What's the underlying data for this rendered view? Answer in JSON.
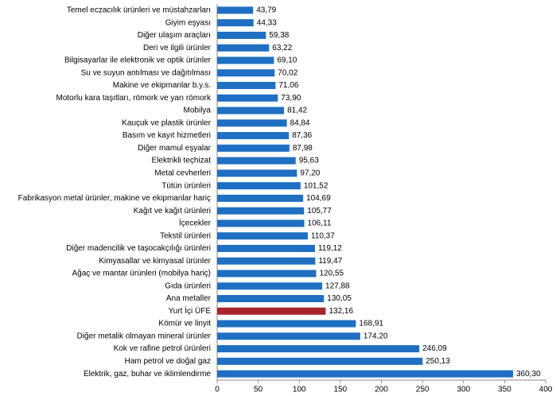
{
  "chart_data": {
    "type": "barh",
    "categories": [
      "Temel eczacılık ürünleri ve müstahzarları",
      "Giyim eşyası",
      "Diğer ulaşım araçları",
      "Deri ve ilgili ürünler",
      "Bilgisayarlar ile elektronik ve optik ürünler",
      "Su ve suyun antılması ve dağıtılması",
      "Makine ve ekipmanlar b.y.s.",
      "Motorlu kara taşıtları, römork ve yarı römork",
      "Mobilya",
      "Kauçuk ve plastik ürünler",
      "Basım ve kayıt hizmetleri",
      "Diğer mamul eşyalar",
      "Elektrikli teçhizat",
      "Metal cevherleri",
      "Tütün ürünleri",
      "Fabrikasyon metal ürünler, makine ve ekipmanlar hariç",
      "Kağıt ve kağıt ürünleri",
      "İçecekler",
      "Tekstil ürünleri",
      "Diğer madencilik ve taşocakçılığı ürünleri",
      "Kimyasallar ve kimyasal ürünler",
      "Ağaç ve mantar ürünleri (mobilya hariç)",
      "Gıda ürünleri",
      "Ana metaller",
      "Yurt İçi ÜFE",
      "Kömür ve linyit",
      "Diğer metalik olmayan mineral ürünler",
      "Kok ve rafine petrol ürünleri",
      "Ham petrol ve doğal gaz",
      "Elektrik, gaz, buhar ve iklimlendirme"
    ],
    "values": [
      43.79,
      44.33,
      59.38,
      63.22,
      69.1,
      70.02,
      71.06,
      73.9,
      81.42,
      84.84,
      87.36,
      87.98,
      95.63,
      97.2,
      101.52,
      104.69,
      105.77,
      106.11,
      110.37,
      119.12,
      119.47,
      120.55,
      127.88,
      130.05,
      132.16,
      168.91,
      174.2,
      246.09,
      250.13,
      360.3
    ],
    "value_labels": [
      "43,79",
      "44,33",
      "59,38",
      "63,22",
      "69,10",
      "70,02",
      "71,06",
      "73,90",
      "81,42",
      "84,84",
      "87,36",
      "87,98",
      "95,63",
      "97,20",
      "101,52",
      "104,69",
      "105,77",
      "106,11",
      "110,37",
      "119,12",
      "119,47",
      "120,55",
      "127,88",
      "130,05",
      "132,16",
      "168,91",
      "174,20",
      "246,09",
      "250,13",
      "360,30"
    ],
    "colors": [
      "#1f6fc2",
      "#1f6fc2",
      "#1f6fc2",
      "#1f6fc2",
      "#1f6fc2",
      "#1f6fc2",
      "#1f6fc2",
      "#1f6fc2",
      "#1f6fc2",
      "#1f6fc2",
      "#1f6fc2",
      "#1f6fc2",
      "#1f6fc2",
      "#1f6fc2",
      "#1f6fc2",
      "#1f6fc2",
      "#1f6fc2",
      "#1f6fc2",
      "#1f6fc2",
      "#1f6fc2",
      "#1f6fc2",
      "#1f6fc2",
      "#1f6fc2",
      "#1f6fc2",
      "#a6262a",
      "#1f6fc2",
      "#1f6fc2",
      "#1f6fc2",
      "#1f6fc2",
      "#1f6fc2"
    ],
    "xlim": [
      0,
      400
    ],
    "xticks": [
      0,
      50,
      100,
      150,
      200,
      250,
      300,
      350,
      400
    ],
    "grid": false
  }
}
